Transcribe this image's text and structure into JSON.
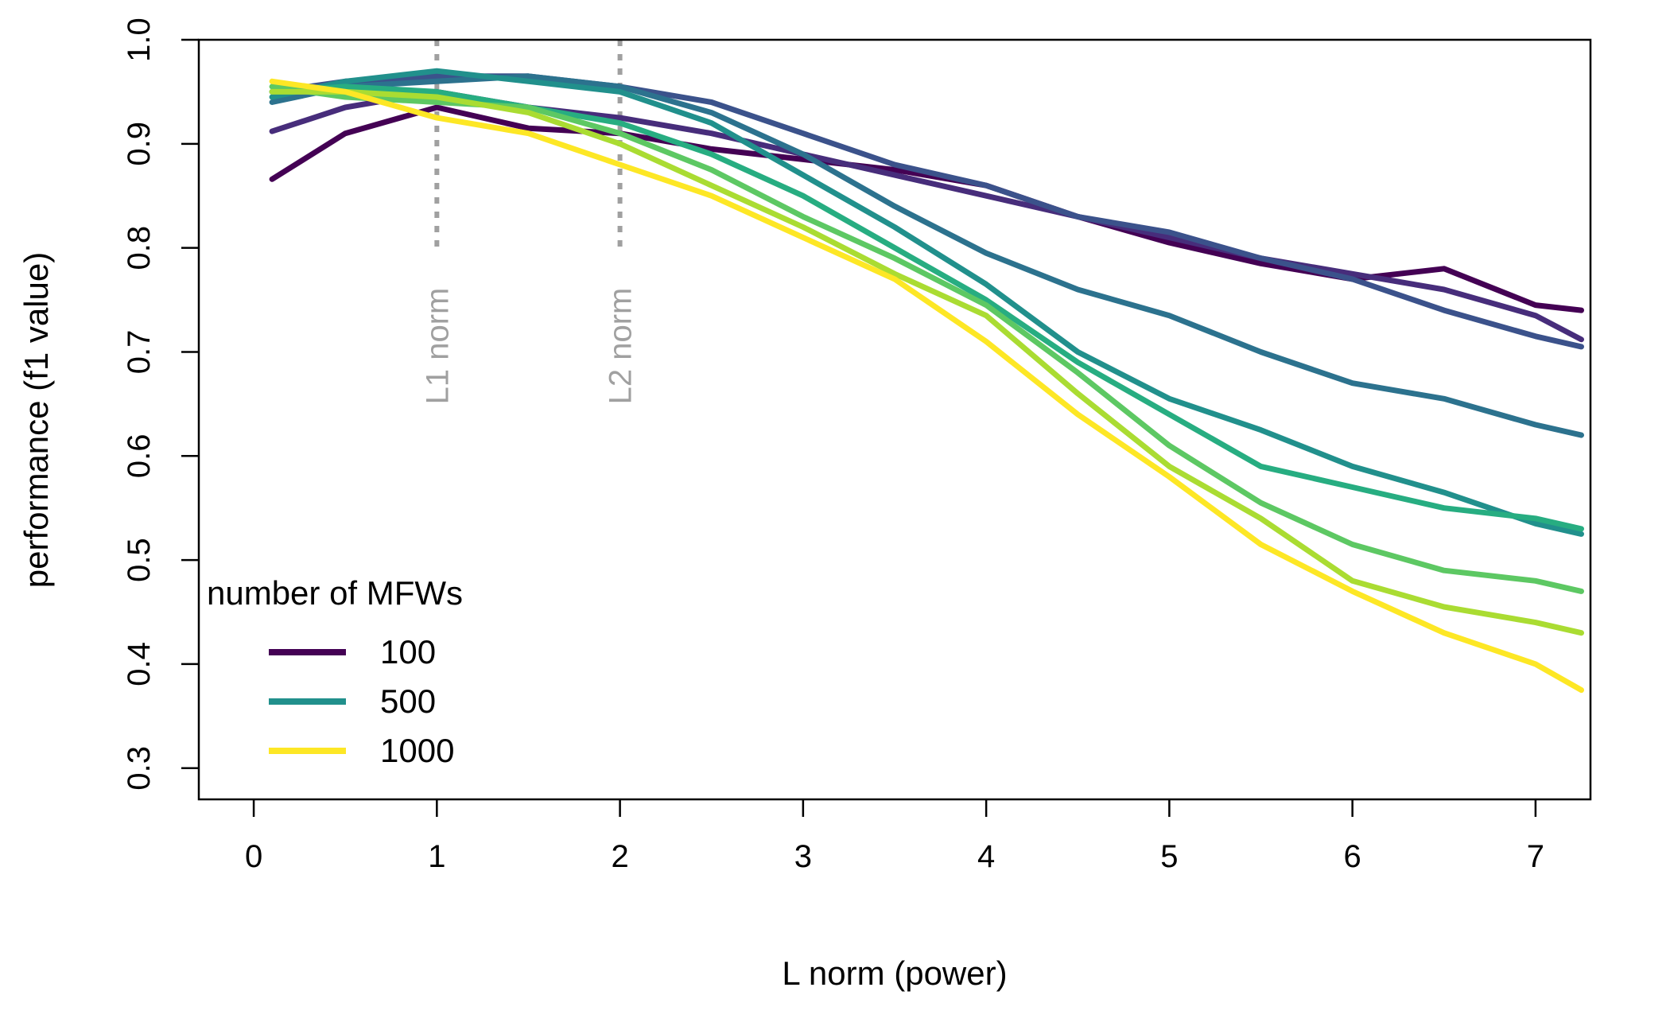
{
  "chart_data": {
    "type": "line",
    "title": "",
    "xlabel": "L norm (power)",
    "ylabel": "performance (f1 value)",
    "xlim": [
      -0.3,
      7.3
    ],
    "ylim": [
      0.27,
      1.0
    ],
    "xticks": [
      "0",
      "1",
      "2",
      "3",
      "4",
      "5",
      "6",
      "7"
    ],
    "yticks": [
      "0.3",
      "0.4",
      "0.5",
      "0.6",
      "0.7",
      "0.8",
      "0.9",
      "1.0"
    ],
    "grid": false,
    "legend": {
      "title": "number of MFWs",
      "position": "bottom-left",
      "entries": [
        {
          "label": "100",
          "color": "#440154"
        },
        {
          "label": "500",
          "color": "#21908C"
        },
        {
          "label": "1000",
          "color": "#FDE725"
        }
      ]
    },
    "reference_lines": [
      {
        "x": 1,
        "label": "L1 norm",
        "color": "#a0a0a0"
      },
      {
        "x": 2,
        "label": "L2 norm",
        "color": "#a0a0a0"
      }
    ],
    "x": [
      0.1,
      0.5,
      1.0,
      1.5,
      2.0,
      2.5,
      3.0,
      3.5,
      4.0,
      4.5,
      5.0,
      5.5,
      6.0,
      6.5,
      7.0,
      7.25
    ],
    "series": [
      {
        "color": "#440154",
        "values": [
          0.866,
          0.91,
          0.935,
          0.915,
          0.91,
          0.895,
          0.885,
          0.875,
          0.86,
          0.83,
          0.805,
          0.785,
          0.77,
          0.78,
          0.745,
          0.74
        ]
      },
      {
        "color": "#472D7B",
        "values": [
          0.912,
          0.935,
          0.95,
          0.935,
          0.925,
          0.91,
          0.89,
          0.87,
          0.85,
          0.83,
          0.81,
          0.79,
          0.775,
          0.76,
          0.735,
          0.712
        ]
      },
      {
        "color": "#3B528B",
        "values": [
          0.95,
          0.96,
          0.965,
          0.965,
          0.955,
          0.94,
          0.91,
          0.88,
          0.86,
          0.83,
          0.815,
          0.79,
          0.77,
          0.74,
          0.715,
          0.705
        ]
      },
      {
        "color": "#2C728E",
        "values": [
          0.94,
          0.955,
          0.96,
          0.965,
          0.955,
          0.93,
          0.89,
          0.84,
          0.795,
          0.76,
          0.735,
          0.7,
          0.67,
          0.655,
          0.63,
          0.62
        ]
      },
      {
        "color": "#21908C",
        "values": [
          0.945,
          0.96,
          0.97,
          0.96,
          0.95,
          0.92,
          0.87,
          0.82,
          0.765,
          0.7,
          0.655,
          0.625,
          0.59,
          0.565,
          0.535,
          0.525
        ]
      },
      {
        "color": "#27AD81",
        "values": [
          0.95,
          0.955,
          0.95,
          0.935,
          0.92,
          0.89,
          0.85,
          0.8,
          0.75,
          0.69,
          0.64,
          0.59,
          0.57,
          0.55,
          0.54,
          0.53
        ]
      },
      {
        "color": "#5DC863",
        "values": [
          0.955,
          0.945,
          0.94,
          0.935,
          0.91,
          0.875,
          0.83,
          0.79,
          0.745,
          0.68,
          0.61,
          0.555,
          0.515,
          0.49,
          0.48,
          0.47
        ]
      },
      {
        "color": "#AADC32",
        "values": [
          0.95,
          0.95,
          0.945,
          0.93,
          0.9,
          0.86,
          0.82,
          0.775,
          0.735,
          0.66,
          0.59,
          0.54,
          0.48,
          0.455,
          0.44,
          0.43
        ]
      },
      {
        "color": "#FDE725",
        "values": [
          0.96,
          0.95,
          0.925,
          0.91,
          0.88,
          0.85,
          0.81,
          0.77,
          0.71,
          0.64,
          0.58,
          0.515,
          0.47,
          0.43,
          0.4,
          0.375
        ]
      }
    ]
  }
}
